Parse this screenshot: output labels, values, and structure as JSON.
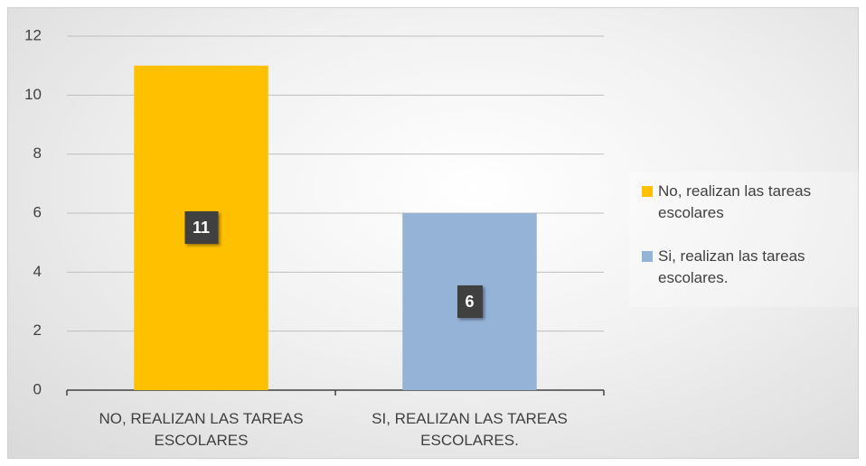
{
  "chart_data": {
    "type": "bar",
    "categories": [
      "NO, REALIZAN LAS TAREAS ESCOLARES",
      "SI, REALIZAN LAS TAREAS ESCOLARES."
    ],
    "values": [
      11,
      6
    ],
    "colors": [
      "#FFC000",
      "#95B3D7"
    ],
    "legend": [
      "No, realizan las tareas escolares",
      "Si, realizan las tareas escolares."
    ],
    "ylim": [
      0,
      12
    ],
    "yticks": [
      0,
      2,
      4,
      6,
      8,
      10,
      12
    ],
    "grid": true,
    "legend_position": "right"
  }
}
